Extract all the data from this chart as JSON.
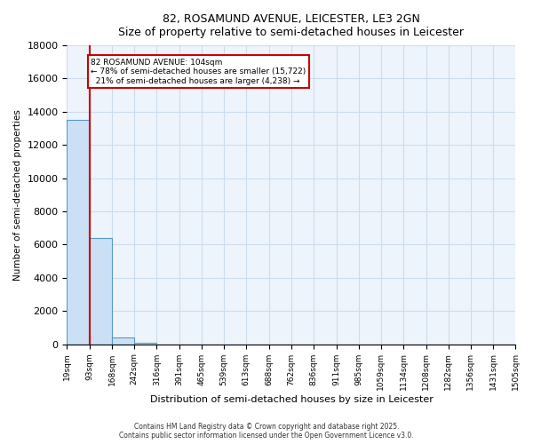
{
  "title": "82, ROSAMUND AVENUE, LEICESTER, LE3 2GN",
  "subtitle": "Size of property relative to semi-detached houses in Leicester",
  "xlabel": "Distribution of semi-detached houses by size in Leicester",
  "ylabel": "Number of semi-detached properties",
  "bar_labels": [
    "19sqm",
    "93sqm",
    "168sqm",
    "242sqm",
    "316sqm",
    "391sqm",
    "465sqm",
    "539sqm",
    "613sqm",
    "688sqm",
    "762sqm",
    "836sqm",
    "911sqm",
    "985sqm",
    "1059sqm",
    "1134sqm",
    "1208sqm",
    "1282sqm",
    "1356sqm",
    "1431sqm",
    "1505sqm"
  ],
  "bar_values": [
    13500,
    6400,
    400,
    100,
    0,
    0,
    0,
    0,
    0,
    0,
    0,
    0,
    0,
    0,
    0,
    0,
    0,
    0,
    0,
    0,
    0
  ],
  "bar_color": "#cce0f5",
  "bar_edge_color": "#5599cc",
  "ylim": [
    0,
    18000
  ],
  "yticks": [
    0,
    2000,
    4000,
    6000,
    8000,
    10000,
    12000,
    14000,
    16000,
    18000
  ],
  "property_value": 104,
  "property_sqm": "104sqm",
  "property_label": "82 ROSAMUND AVENUE: 104sqm",
  "pct_smaller": 78,
  "pct_larger": 21,
  "count_smaller": 15722,
  "count_larger": 4238,
  "red_line_color": "#cc0000",
  "annotation_box_color": "#cc0000",
  "grid_color": "#ccddee",
  "background_color": "#eef4fb",
  "footer_line1": "Contains HM Land Registry data © Crown copyright and database right 2025.",
  "footer_line2": "Contains public sector information licensed under the Open Government Licence v3.0.",
  "bin_edges": [
    19,
    93,
    168,
    242,
    316,
    391,
    465,
    539,
    613,
    688,
    762,
    836,
    911,
    985,
    1059,
    1134,
    1208,
    1282,
    1356,
    1431,
    1505
  ]
}
